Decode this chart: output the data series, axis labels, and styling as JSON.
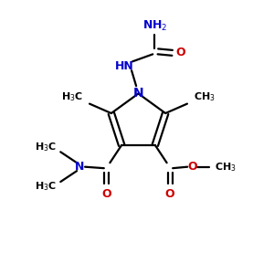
{
  "background_color": "#ffffff",
  "bond_color": "#000000",
  "n_color": "#0000cc",
  "o_color": "#cc0000",
  "figsize": [
    3.0,
    3.0
  ],
  "dpi": 100,
  "lw": 1.6,
  "fs": 9.0,
  "fs_small": 8.0,
  "xlim": [
    0,
    10
  ],
  "ylim": [
    0,
    10
  ]
}
